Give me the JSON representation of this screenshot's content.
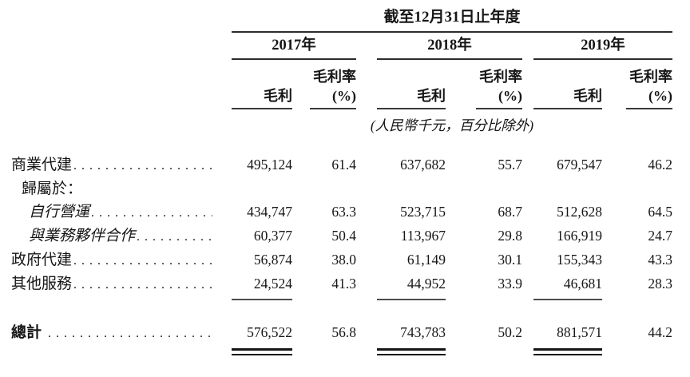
{
  "document": {
    "title": "截至12月31日止年度",
    "unit_note": "(人民幣千元，百分比除外)",
    "leader_dots": "..........................................................",
    "years": [
      "2017年",
      "2018年",
      "2019年"
    ],
    "column_headers": {
      "value": "毛利",
      "rate_line1": "毛利率",
      "rate_line2": "(%)"
    },
    "rows": [
      {
        "label": "商業代建",
        "values": [
          "495,124",
          "61.4",
          "637,682",
          "55.7",
          "679,547",
          "46.2"
        ]
      },
      {
        "label": "歸屬於：",
        "values": []
      },
      {
        "label": "自行營運",
        "values": [
          "434,747",
          "63.3",
          "523,715",
          "68.7",
          "512,628",
          "64.5"
        ]
      },
      {
        "label": "與業務夥伴合作",
        "values": [
          "60,377",
          "50.4",
          "113,967",
          "29.8",
          "166,919",
          "24.7"
        ]
      },
      {
        "label": "政府代建",
        "values": [
          "56,874",
          "38.0",
          "61,149",
          "30.1",
          "155,343",
          "43.3"
        ]
      },
      {
        "label": "其他服務",
        "values": [
          "24,524",
          "41.3",
          "44,952",
          "33.9",
          "46,681",
          "28.3"
        ]
      },
      {
        "label": "總計",
        "values": [
          "576,522",
          "56.8",
          "743,783",
          "50.2",
          "881,571",
          "44.2"
        ]
      }
    ]
  }
}
